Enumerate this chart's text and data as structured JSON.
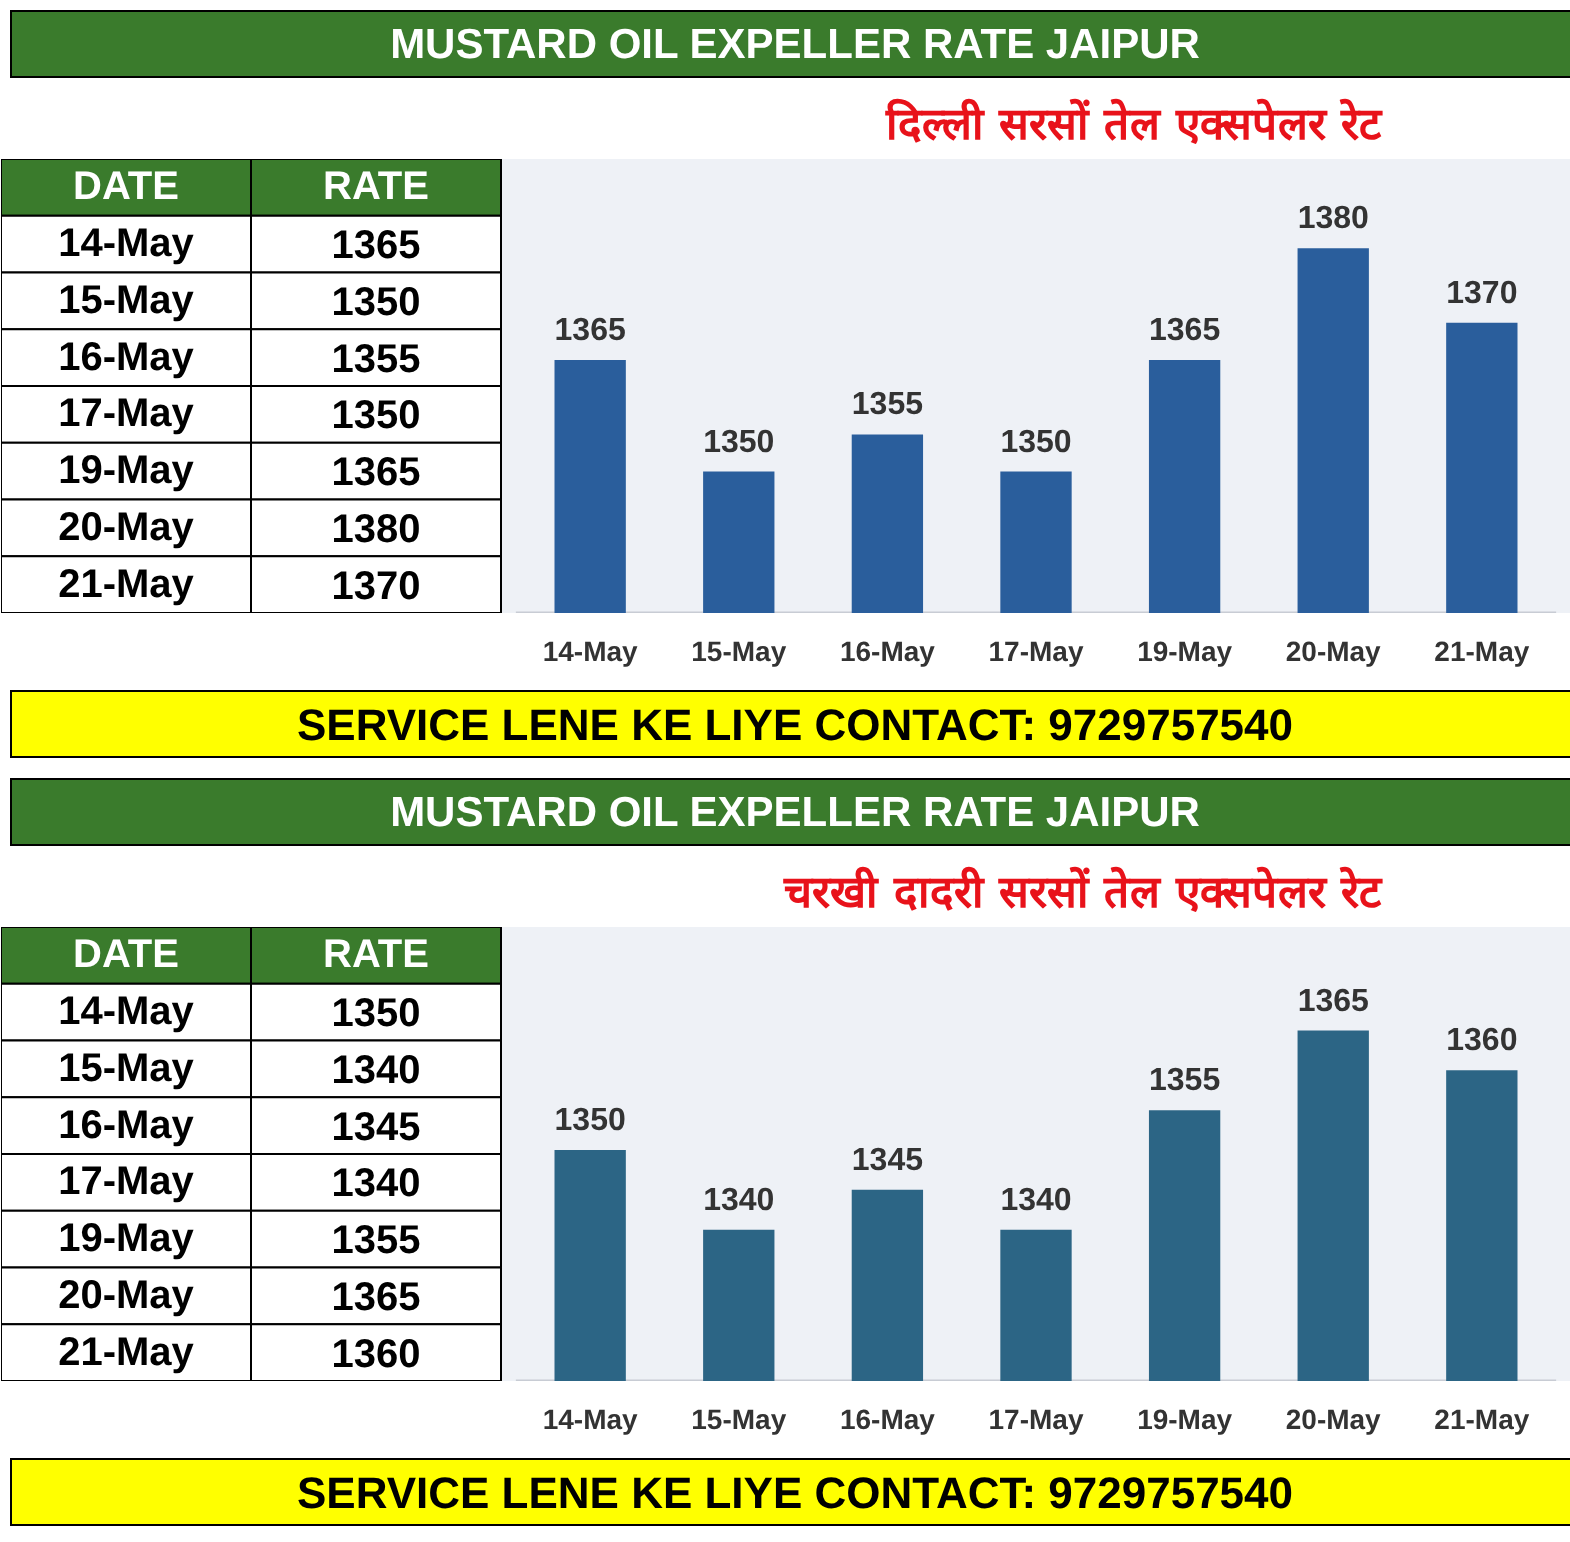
{
  "chart_data": [
    {
      "type": "bar",
      "title": "MUSTARD OIL EXPELLER RATE JAIPUR",
      "subtitle": "दिल्ली सरसों तेल एक्सपेलर रेट",
      "categories": [
        "14-May",
        "15-May",
        "16-May",
        "17-May",
        "19-May",
        "20-May",
        "21-May"
      ],
      "values": [
        1365,
        1350,
        1355,
        1350,
        1365,
        1380,
        1370
      ],
      "color": "#2a5e9c",
      "ylim": [
        1331,
        1392
      ],
      "data_labels": true,
      "annotations": [
        "DATE",
        "RATE",
        "1365",
        "1350",
        "1355",
        "1350",
        "1365",
        "1380",
        "1370",
        "SERVICE LENE KE LIYE CONTACT: 9729757540"
      ]
    },
    {
      "type": "bar",
      "title": "MUSTARD OIL EXPELLER RATE JAIPUR",
      "subtitle": "चरखी दादरी सरसों तेल एक्सपेलर रेट",
      "categories": [
        "14-May",
        "15-May",
        "16-May",
        "17-May",
        "19-May",
        "20-May",
        "21-May"
      ],
      "values": [
        1350,
        1340,
        1345,
        1340,
        1355,
        1365,
        1360
      ],
      "color": "#2c6585",
      "ylim": [
        1321,
        1378
      ],
      "data_labels": true,
      "annotations": [
        "DATE",
        "RATE",
        "1350",
        "1340",
        "1345",
        "1340",
        "1355",
        "1365",
        "1360",
        "SERVICE LENE KE LIYE CONTACT: 9729757540"
      ]
    }
  ]
}
